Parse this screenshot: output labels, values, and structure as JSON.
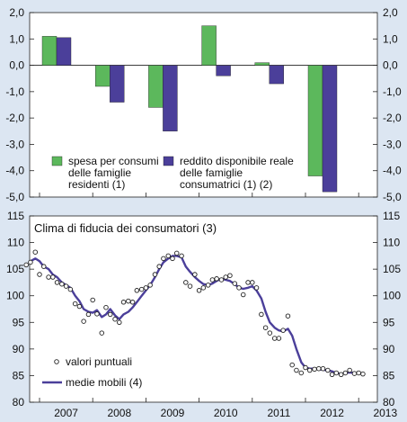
{
  "chart_data": [
    {
      "type": "bar",
      "categories": [
        "2007",
        "2008",
        "2009",
        "2010",
        "2011",
        "2012"
      ],
      "series": [
        {
          "name_lines": [
            "spesa per consumi",
            "delle famiglie",
            "residenti (1)"
          ],
          "color": "#5cb85c",
          "values": [
            1.1,
            -0.8,
            -1.6,
            1.5,
            0.1,
            -4.2
          ]
        },
        {
          "name_lines": [
            "reddito disponibile reale",
            "delle famiglie",
            "consumatrici (1) (2)"
          ],
          "color": "#4b3f9a",
          "values": [
            1.05,
            -1.4,
            -2.5,
            -0.4,
            -0.7,
            -4.8
          ]
        }
      ],
      "yticks": [
        "2,0",
        "1,0",
        "0,0",
        "-1,0",
        "-2,0",
        "-3,0",
        "-4,0",
        "-5,0"
      ],
      "ylim": [
        -5,
        2
      ]
    },
    {
      "type": "line",
      "title": "Clima di fiducia dei consumatori (3)",
      "yticks": [
        "115",
        "110",
        "105",
        "100",
        "95",
        "90",
        "85",
        "80"
      ],
      "ylim": [
        80,
        115
      ],
      "xlim": [
        2006.75,
        2013.5
      ],
      "xlabels": [
        "2007",
        "2008",
        "2009",
        "2010",
        "2011",
        "2012",
        "2013"
      ],
      "series": [
        {
          "name": "valori puntuali",
          "style": "points",
          "x": [
            2006.75,
            2006.83,
            2006.92,
            2007.0,
            2007.08,
            2007.17,
            2007.25,
            2007.33,
            2007.42,
            2007.5,
            2007.58,
            2007.67,
            2007.75,
            2007.83,
            2007.92,
            2008.0,
            2008.08,
            2008.17,
            2008.25,
            2008.33,
            2008.42,
            2008.5,
            2008.58,
            2008.67,
            2008.75,
            2008.83,
            2008.92,
            2009.0,
            2009.08,
            2009.17,
            2009.25,
            2009.33,
            2009.42,
            2009.5,
            2009.58,
            2009.67,
            2009.75,
            2009.83,
            2009.92,
            2010.0,
            2010.08,
            2010.17,
            2010.25,
            2010.33,
            2010.42,
            2010.5,
            2010.58,
            2010.67,
            2010.75,
            2010.83,
            2010.92,
            2011.0,
            2011.08,
            2011.17,
            2011.25,
            2011.33,
            2011.42,
            2011.5,
            2011.58,
            2011.67,
            2011.75,
            2011.83,
            2011.92,
            2012.0,
            2012.08,
            2012.17,
            2012.25,
            2012.33,
            2012.42,
            2012.5,
            2012.58,
            2012.67,
            2012.75,
            2012.83,
            2012.92,
            2013.0,
            2013.08
          ],
          "y": [
            105.8,
            106.3,
            108.2,
            104.0,
            105.5,
            103.5,
            103.5,
            102.5,
            102.2,
            101.8,
            101.2,
            98.5,
            98.0,
            95.2,
            96.5,
            99.2,
            96.6,
            93.0,
            97.8,
            96.5,
            95.6,
            95.0,
            98.8,
            99.0,
            98.8,
            101.0,
            101.2,
            101.5,
            102.0,
            104.0,
            105.5,
            107.0,
            107.5,
            107.0,
            108.0,
            107.5,
            102.5,
            101.8,
            104.0,
            101.0,
            101.5,
            102.0,
            103.0,
            103.2,
            103.0,
            103.5,
            103.8,
            102.3,
            101.5,
            100.2,
            102.5,
            102.5,
            101.5,
            96.5,
            94.0,
            93.0,
            92.0,
            92.0,
            93.5,
            96.2,
            87.0,
            86.0,
            85.5,
            86.5,
            86.0,
            86.2,
            86.3,
            86.3,
            86.0,
            85.2,
            85.5,
            85.2,
            85.5,
            86.0,
            85.4,
            85.5,
            85.3
          ]
        },
        {
          "name": "medie mobili (4)",
          "style": "line",
          "color": "#4b3f9a",
          "x": [
            2006.83,
            2006.92,
            2007.0,
            2007.08,
            2007.17,
            2007.25,
            2007.33,
            2007.42,
            2007.5,
            2007.58,
            2007.67,
            2007.75,
            2007.83,
            2007.92,
            2008.0,
            2008.08,
            2008.17,
            2008.25,
            2008.33,
            2008.42,
            2008.5,
            2008.58,
            2008.67,
            2008.75,
            2008.83,
            2008.92,
            2009.0,
            2009.08,
            2009.17,
            2009.25,
            2009.33,
            2009.42,
            2009.5,
            2009.58,
            2009.67,
            2009.75,
            2009.83,
            2009.92,
            2010.0,
            2010.08,
            2010.17,
            2010.25,
            2010.33,
            2010.42,
            2010.5,
            2010.58,
            2010.67,
            2010.75,
            2010.83,
            2010.92,
            2011.0,
            2011.08,
            2011.17,
            2011.25,
            2011.33,
            2011.42,
            2011.5,
            2011.58,
            2011.67,
            2011.75,
            2011.83,
            2011.92,
            2012.0,
            2012.08,
            2012.17,
            2012.25,
            2012.33,
            2012.42,
            2012.5,
            2012.58,
            2012.67,
            2012.75,
            2012.83,
            2012.92,
            2013.0,
            2013.08
          ],
          "y": [
            106.5,
            107.0,
            106.5,
            105.5,
            105.0,
            104.0,
            103.5,
            102.5,
            102.0,
            101.5,
            100.0,
            99.0,
            97.5,
            97.0,
            96.8,
            97.3,
            96.0,
            96.5,
            97.5,
            96.3,
            95.6,
            96.5,
            97.0,
            97.8,
            98.8,
            100.0,
            101.0,
            102.0,
            103.5,
            105.0,
            106.3,
            107.0,
            107.5,
            107.5,
            107.2,
            105.5,
            104.5,
            103.5,
            102.8,
            102.2,
            102.0,
            102.3,
            102.8,
            103.2,
            103.0,
            102.8,
            102.2,
            101.5,
            101.3,
            101.5,
            101.8,
            101.0,
            99.5,
            97.0,
            95.0,
            94.0,
            93.5,
            93.3,
            93.8,
            92.5,
            90.0,
            87.5,
            86.5,
            86.3,
            86.3,
            86.2,
            86.1,
            86.0,
            85.8,
            85.5,
            85.3,
            85.5,
            85.6,
            85.5,
            85.4,
            85.4
          ]
        }
      ]
    }
  ]
}
